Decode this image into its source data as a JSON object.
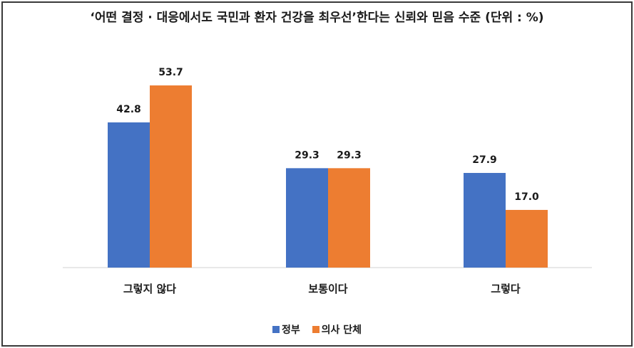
{
  "title": "‘어떤 결정 · 대응에서도 국민과 환자 건강을 최우선’한다는 신뢰와 믿음 수준 (단위 : %)",
  "chart_data": {
    "type": "bar",
    "title": "‘어떤 결정 · 대응에서도 국민과 환자 건강을 최우선’한다는 신뢰와 믿음 수준 (단위 : %)",
    "categories": [
      "그렇지 않다",
      "보통이다",
      "그렇다"
    ],
    "series": [
      {
        "name": "정부",
        "values": [
          42.8,
          29.3,
          27.9
        ],
        "color": "#4472C4"
      },
      {
        "name": "의사 단체",
        "values": [
          53.7,
          29.3,
          17.0
        ],
        "color": "#ED7D31"
      }
    ],
    "value_labels": [
      [
        "42.8",
        "29.3",
        "27.9"
      ],
      [
        "53.7",
        "29.3",
        "17.0"
      ]
    ],
    "xlabel": "",
    "ylabel": "",
    "ylim": [
      0,
      60
    ],
    "grid": false,
    "legend_position": "bottom"
  }
}
